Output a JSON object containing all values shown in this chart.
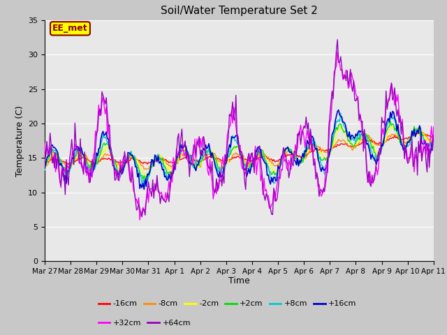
{
  "title": "Soil/Water Temperature Set 2",
  "xlabel": "Time",
  "ylabel": "Temperature (C)",
  "ylim": [
    0,
    35
  ],
  "yticks": [
    0,
    5,
    10,
    15,
    20,
    25,
    30,
    35
  ],
  "annotation_text": "EE_met",
  "annotation_color": "#8B0000",
  "annotation_bg": "#FFFF00",
  "annotation_border": "#8B0000",
  "series_labels": [
    "-16cm",
    "-8cm",
    "-2cm",
    "+2cm",
    "+8cm",
    "+16cm",
    "+32cm",
    "+64cm"
  ],
  "series_colors": [
    "#FF0000",
    "#FF8C00",
    "#FFFF00",
    "#00DD00",
    "#00CCCC",
    "#0000CC",
    "#FF00FF",
    "#9900BB"
  ],
  "plot_bg": "#E8E8E8",
  "grid_color": "#FFFFFF",
  "fig_bg": "#C8C8C8",
  "xtick_labels": [
    "Mar 27",
    "Mar 28",
    "Mar 29",
    "Mar 30",
    "Mar 31",
    "Apr 1",
    "Apr 2",
    "Apr 3",
    "Apr 4",
    "Apr 5",
    "Apr 6",
    "Apr 7",
    "Apr 8",
    "Apr 9",
    "Apr 10",
    "Apr 11"
  ],
  "xtick_positions": [
    0,
    24,
    48,
    72,
    96,
    120,
    144,
    168,
    192,
    216,
    240,
    264,
    288,
    312,
    336,
    360
  ]
}
